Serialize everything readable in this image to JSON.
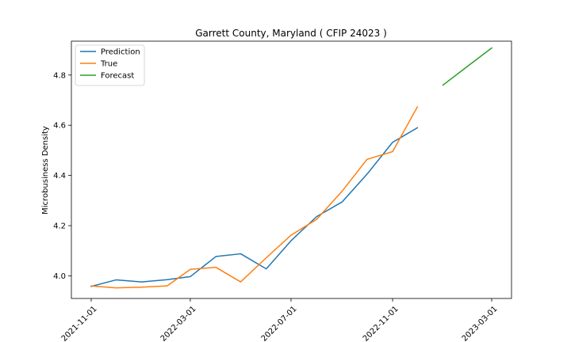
{
  "chart_data": {
    "type": "line",
    "title": "Garrett County, Maryland ( CFIP 24023 )",
    "xlabel": "",
    "ylabel": "Microbusiness Density",
    "x_ticks": [
      "2021-11-01",
      "2022-03-01",
      "2022-07-01",
      "2022-11-01",
      "2023-03-01"
    ],
    "y_ticks": [
      "4.0",
      "4.2",
      "4.4",
      "4.6",
      "4.8"
    ],
    "xlim": [
      "2021-10-08",
      "2023-03-25"
    ],
    "ylim": [
      3.91,
      4.935
    ],
    "legend_position": "top-left",
    "grid": false,
    "series": [
      {
        "name": "Prediction",
        "color": "#1f77b4",
        "points": [
          [
            "2021-11-01",
            3.958
          ],
          [
            "2021-12-01",
            3.984
          ],
          [
            "2022-01-01",
            3.976
          ],
          [
            "2022-02-01",
            3.985
          ],
          [
            "2022-03-01",
            3.997
          ],
          [
            "2022-04-01",
            4.077
          ],
          [
            "2022-05-01",
            4.088
          ],
          [
            "2022-06-01",
            4.028
          ],
          [
            "2022-07-01",
            4.14
          ],
          [
            "2022-08-01",
            4.236
          ],
          [
            "2022-09-01",
            4.295
          ],
          [
            "2022-10-01",
            4.405
          ],
          [
            "2022-11-01",
            4.532
          ],
          [
            "2022-12-01",
            4.59
          ]
        ]
      },
      {
        "name": "True",
        "color": "#ff7f0e",
        "points": [
          [
            "2021-11-01",
            3.96
          ],
          [
            "2021-12-01",
            3.952
          ],
          [
            "2022-01-01",
            3.955
          ],
          [
            "2022-02-01",
            3.96
          ],
          [
            "2022-03-01",
            4.026
          ],
          [
            "2022-04-01",
            4.034
          ],
          [
            "2022-05-01",
            3.976
          ],
          [
            "2022-06-01",
            4.072
          ],
          [
            "2022-07-01",
            4.162
          ],
          [
            "2022-08-01",
            4.225
          ],
          [
            "2022-09-01",
            4.338
          ],
          [
            "2022-10-01",
            4.464
          ],
          [
            "2022-11-01",
            4.495
          ],
          [
            "2022-12-01",
            4.673
          ]
        ]
      },
      {
        "name": "Forecast",
        "color": "#2ca02c",
        "points": [
          [
            "2023-01-01",
            4.76
          ],
          [
            "2023-02-01",
            4.838
          ],
          [
            "2023-03-01",
            4.908
          ]
        ]
      }
    ]
  }
}
